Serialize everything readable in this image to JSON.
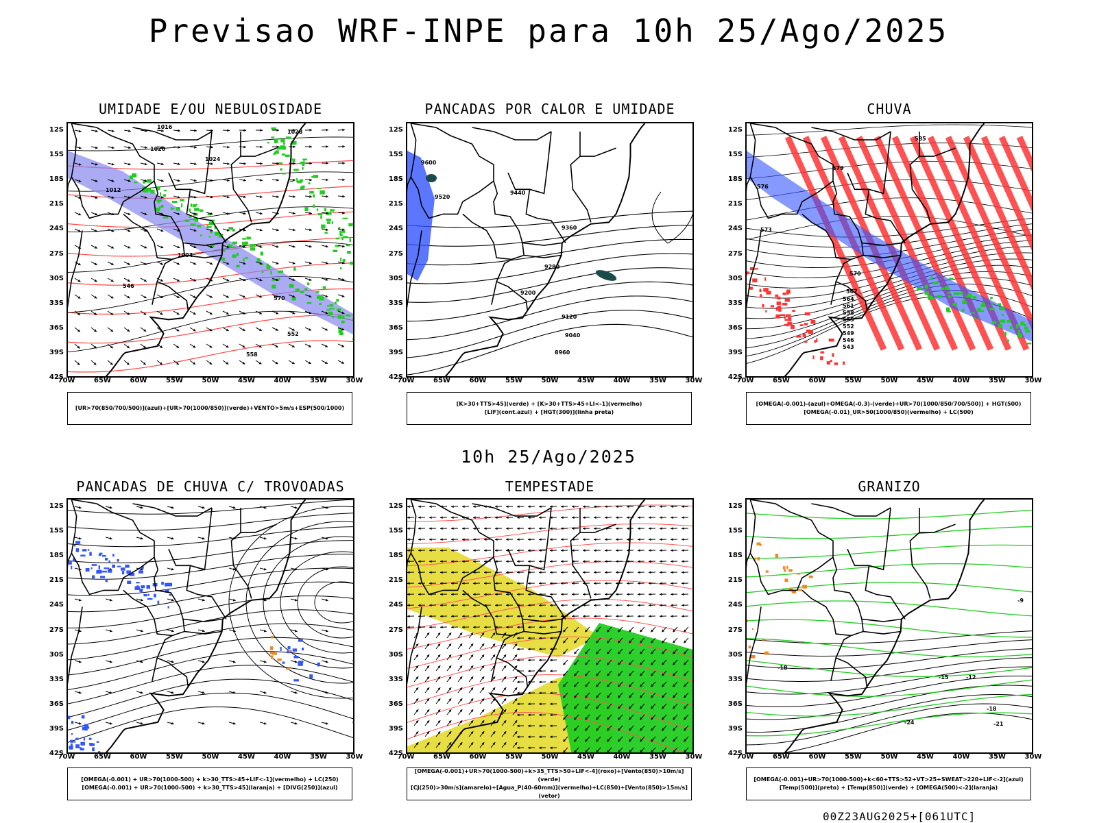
{
  "header": {
    "title": "Previsao WRF-INPE  para 10h 25/Ago/2025",
    "mid_title": "10h 25/Ago/2025",
    "footer": "00Z23AUG2025+[061UTC]"
  },
  "axes": {
    "lat_labels": [
      "12S",
      "15S",
      "18S",
      "21S",
      "24S",
      "27S",
      "30S",
      "33S",
      "36S",
      "39S",
      "42S"
    ],
    "lon_labels": [
      "70W",
      "65W",
      "60W",
      "55W",
      "50W",
      "45W",
      "40W",
      "35W",
      "30W"
    ]
  },
  "colors": {
    "green": "#22cc22",
    "blue": "#3355ff",
    "red": "#ff3333",
    "yellow": "#e6dc3a",
    "purple": "#8888ee",
    "teal": "#1a4a4a",
    "orange": "#ee8822"
  },
  "panels": [
    {
      "id": "umidade",
      "title": "UMIDADE E/OU NEBULOSIDADE",
      "legend": [
        "[UR>70(850/700/500)](azul)+[UR>70(1000/850)](verde)+VENTO>5m/s+ESP(500/1000)"
      ],
      "contour_labels": [
        "1016",
        "1020",
        "1024",
        "1028",
        "1012",
        "1004",
        "570",
        "558",
        "552",
        "546"
      ]
    },
    {
      "id": "pancadas-calor",
      "title": "PANCADAS POR CALOR E UMIDADE",
      "legend": [
        "[K>30+TTS>45](verde) + [K>30+TTS>45+LI<-1](vermelho)",
        "[LIF](cont.azul) + [HGT(300)](linha preta)"
      ],
      "contour_labels": [
        "9600",
        "9520",
        "9440",
        "9360",
        "9280",
        "9200",
        "9120",
        "9040",
        "8960"
      ]
    },
    {
      "id": "chuva",
      "title": "CHUVA",
      "legend": [
        "[OMEGA(-0.001)-(azul)+OMEGA(-0.3)-(verde)+UR>70(1000/850/700/500)] + HGT(500)",
        "[OMEGA(-0.01)_UR>50(1000/850)(vermelho) + LC(500)"
      ],
      "contour_labels": [
        "585",
        "579",
        "576",
        "573",
        "570",
        "567",
        "564",
        "561",
        "558",
        "555",
        "552",
        "549",
        "546",
        "543"
      ]
    },
    {
      "id": "pancadas-trovoadas",
      "title": "PANCADAS DE CHUVA C/ TROVOADAS",
      "legend": [
        "[OMEGA(-0.001) + UR>70(1000-500) + k>30_TTS>45+LIF<-1](vermelho) + LC(250)",
        "[OMEGA(-0.001) + UR>70(1000-500) + k>30_TTS>45](laranja) + [DIVG(250)](azul)"
      ],
      "contour_labels": []
    },
    {
      "id": "tempestade",
      "title": "TEMPESTADE",
      "legend": [
        "[OMEGA(-0.001)+UR>70(1000-500)+k>35_TTS>50+LIF<-4](roxo)+[Vento(850)>10m/s](verde)",
        "[CJ(250)>30m/s](amarelo)+[Agua_P(40-60mm)](vermelho)+LC(850)+[Vento(850)>15m/s](vetor)"
      ],
      "contour_labels": []
    },
    {
      "id": "granizo",
      "title": "GRANIZO",
      "legend": [
        "[OMEGA(-0.001)+UR>70(1000-500)+k<60+TTS>52+VT>25+SWEAT>220+LIF<-2](azul)",
        "[Temp(500)](preto) + [Temp(850)](verde) + [OMEGA(500)<-2](laranja)"
      ],
      "contour_labels": [
        "-15",
        "-12",
        "-18",
        "-21",
        "-24",
        "-9",
        "-18"
      ]
    }
  ]
}
